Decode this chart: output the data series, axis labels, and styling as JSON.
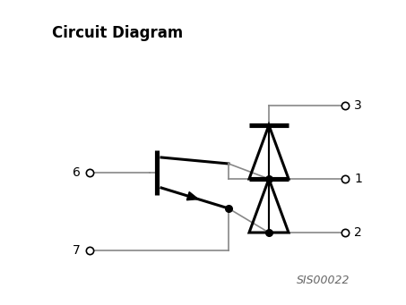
{
  "title": "Circuit Diagram",
  "title_fontsize": 12,
  "title_fontweight": "bold",
  "watermark": "SIS00022",
  "watermark_fontsize": 9,
  "bg_color": "#ffffff",
  "line_color": "#888888",
  "symbol_color": "#000000",
  "line_width": 1.2,
  "symbol_lw": 2.2
}
